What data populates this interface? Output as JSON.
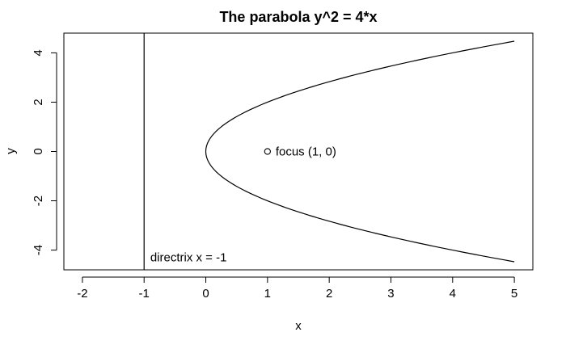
{
  "chart_data": {
    "type": "line",
    "title": "The parabola y^2 = 4*x",
    "xlabel": "x",
    "ylabel": "y",
    "xlim": [
      -2.3,
      5.3
    ],
    "ylim": [
      -4.8,
      4.8
    ],
    "x_ticks": [
      -2,
      -1,
      0,
      1,
      2,
      3,
      4,
      5
    ],
    "y_ticks": [
      -4,
      -2,
      0,
      2,
      4
    ],
    "x_tick_labels": [
      "-2",
      "-1",
      "0",
      "1",
      "2",
      "3",
      "4",
      "5"
    ],
    "y_tick_labels": [
      "-4",
      "-2",
      "0",
      "2",
      "4"
    ],
    "grid": false,
    "series": [
      {
        "equation": "y^2 = 4*x",
        "x": [
          5,
          4,
          3,
          2.25,
          1.5625,
          1,
          0.5625,
          0.25,
          0.0625,
          0,
          0.0625,
          0.25,
          0.5625,
          1,
          1.5625,
          2.25,
          3,
          4,
          5
        ],
        "y": [
          -4.472,
          -4,
          -3.464,
          -3,
          -2.5,
          -2,
          -1.5,
          -1,
          -0.5,
          0,
          0.5,
          1,
          1.5,
          2,
          2.5,
          3,
          3.464,
          4,
          4.472
        ]
      }
    ],
    "directrix": {
      "x": -1,
      "label": "directrix x = -1"
    },
    "focus": {
      "x": 1,
      "y": 0,
      "label": "focus (1, 0)"
    }
  }
}
